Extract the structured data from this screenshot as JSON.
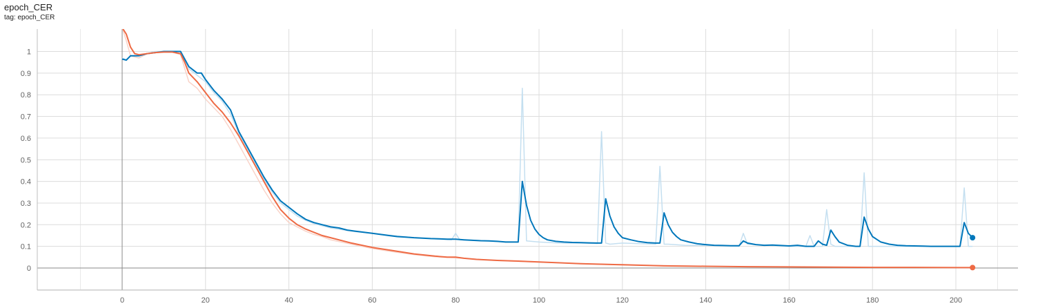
{
  "header": {
    "title": "epoch_CER",
    "tag": "tag: epoch_CER"
  },
  "chart_data": [
    {
      "type": "line",
      "title": "epoch_CER",
      "xlabel": "",
      "ylabel": "",
      "xlim": [
        -20,
        215
      ],
      "ylim": [
        -0.1,
        1.1
      ],
      "x_ticks": [
        0,
        20,
        40,
        60,
        80,
        100,
        120,
        140,
        160,
        180,
        200
      ],
      "y_ticks": [
        0,
        0.1,
        0.2,
        0.3,
        0.4,
        0.5,
        0.6,
        0.7,
        0.8,
        0.9,
        1
      ],
      "x_tick_labels": [
        "0",
        "20",
        "40",
        "60",
        "80",
        "100",
        "120",
        "140",
        "160",
        "180",
        "200"
      ],
      "y_tick_labels": [
        "0",
        "0.1",
        "0.2",
        "0.3",
        "0.4",
        "0.5",
        "0.6",
        "0.7",
        "0.8",
        "0.9",
        "1"
      ],
      "grid": true,
      "series": [
        {
          "color": "#0077bb",
          "raw_color": "#c4dff0",
          "smoothed": {
            "x": [
              0,
              1,
              2,
              4,
              6,
              8,
              10,
              12,
              14,
              16,
              18,
              19,
              20,
              22,
              24,
              26,
              27,
              28,
              30,
              32,
              34,
              36,
              38,
              40,
              42,
              44,
              46,
              48,
              50,
              52,
              54,
              56,
              58,
              60,
              62,
              64,
              66,
              68,
              70,
              72,
              74,
              76,
              78,
              80,
              82,
              84,
              86,
              88,
              90,
              92,
              94,
              95,
              96,
              97,
              98,
              99,
              100,
              101,
              102,
              104,
              106,
              108,
              110,
              112,
              114,
              115,
              116,
              117,
              118,
              119,
              120,
              122,
              124,
              126,
              128,
              129,
              130,
              131,
              132,
              133,
              134,
              136,
              138,
              140,
              142,
              144,
              146,
              148,
              149,
              150,
              152,
              154,
              156,
              158,
              160,
              162,
              164,
              166,
              167,
              168,
              169,
              170,
              171,
              172,
              174,
              176,
              177,
              178,
              179,
              180,
              182,
              184,
              186,
              188,
              190,
              192,
              194,
              196,
              198,
              200,
              201,
              202,
              203,
              204
            ],
            "y": [
              0.965,
              0.96,
              0.98,
              0.98,
              0.99,
              0.995,
              1.0,
              1.0,
              1.0,
              0.93,
              0.9,
              0.9,
              0.87,
              0.82,
              0.78,
              0.73,
              0.68,
              0.63,
              0.56,
              0.49,
              0.42,
              0.36,
              0.31,
              0.28,
              0.25,
              0.225,
              0.21,
              0.2,
              0.19,
              0.185,
              0.175,
              0.17,
              0.165,
              0.16,
              0.155,
              0.15,
              0.145,
              0.143,
              0.14,
              0.138,
              0.136,
              0.135,
              0.133,
              0.133,
              0.13,
              0.128,
              0.126,
              0.125,
              0.123,
              0.12,
              0.12,
              0.12,
              0.4,
              0.29,
              0.22,
              0.18,
              0.155,
              0.14,
              0.13,
              0.123,
              0.12,
              0.118,
              0.117,
              0.116,
              0.115,
              0.115,
              0.32,
              0.24,
              0.19,
              0.16,
              0.14,
              0.13,
              0.122,
              0.117,
              0.115,
              0.115,
              0.255,
              0.2,
              0.165,
              0.145,
              0.13,
              0.12,
              0.112,
              0.108,
              0.105,
              0.104,
              0.103,
              0.103,
              0.125,
              0.115,
              0.108,
              0.105,
              0.106,
              0.104,
              0.102,
              0.105,
              0.1,
              0.1,
              0.125,
              0.11,
              0.105,
              0.175,
              0.145,
              0.12,
              0.105,
              0.1,
              0.1,
              0.235,
              0.18,
              0.145,
              0.12,
              0.11,
              0.105,
              0.103,
              0.102,
              0.101,
              0.1,
              0.1,
              0.1,
              0.1,
              0.1,
              0.21,
              0.16,
              0.14
            ]
          },
          "raw": {
            "x": [
              0,
              1,
              2,
              4,
              6,
              8,
              10,
              12,
              14,
              16,
              18,
              20,
              22,
              24,
              26,
              28,
              30,
              32,
              34,
              36,
              38,
              40,
              42,
              44,
              46,
              48,
              50,
              55,
              60,
              65,
              70,
              75,
              79,
              80,
              81,
              85,
              90,
              95,
              96,
              97,
              100,
              105,
              110,
              114,
              115,
              116,
              117,
              120,
              125,
              128,
              129,
              130,
              131,
              135,
              140,
              145,
              148,
              149,
              150,
              155,
              160,
              164,
              165,
              166,
              168,
              169,
              170,
              171,
              175,
              177,
              178,
              179,
              180,
              185,
              190,
              195,
              200,
              201,
              202,
              203,
              204
            ],
            "y": [
              0.97,
              0.96,
              0.98,
              0.97,
              0.99,
              1.0,
              1.0,
              1.0,
              1.0,
              0.92,
              0.89,
              0.86,
              0.81,
              0.77,
              0.71,
              0.62,
              0.55,
              0.48,
              0.41,
              0.35,
              0.3,
              0.27,
              0.24,
              0.22,
              0.205,
              0.195,
              0.185,
              0.17,
              0.16,
              0.15,
              0.14,
              0.135,
              0.13,
              0.16,
              0.13,
              0.128,
              0.122,
              0.12,
              0.83,
              0.125,
              0.12,
              0.115,
              0.115,
              0.113,
              0.63,
              0.115,
              0.11,
              0.115,
              0.112,
              0.11,
              0.47,
              0.11,
              0.11,
              0.105,
              0.104,
              0.102,
              0.1,
              0.16,
              0.11,
              0.105,
              0.1,
              0.1,
              0.15,
              0.1,
              0.1,
              0.27,
              0.11,
              0.1,
              0.1,
              0.1,
              0.44,
              0.1,
              0.1,
              0.1,
              0.1,
              0.1,
              0.1,
              0.1,
              0.37,
              0.1,
              0.1
            ]
          }
        },
        {
          "color": "#ee6a44",
          "raw_color": "#f9d3c8",
          "smoothed": {
            "x": [
              0,
              1,
              2,
              3,
              4,
              6,
              8,
              10,
              12,
              14,
              15,
              16,
              18,
              20,
              22,
              24,
              26,
              28,
              30,
              32,
              34,
              36,
              38,
              40,
              42,
              44,
              46,
              48,
              50,
              55,
              60,
              65,
              70,
              75,
              78,
              80,
              82,
              85,
              90,
              95,
              100,
              110,
              120,
              130,
              140,
              150,
              160,
              170,
              180,
              190,
              200,
              204
            ],
            "y": [
              1.11,
              1.08,
              1.02,
              0.99,
              0.985,
              0.99,
              0.995,
              0.997,
              0.997,
              0.99,
              0.95,
              0.9,
              0.86,
              0.81,
              0.76,
              0.72,
              0.67,
              0.61,
              0.54,
              0.47,
              0.4,
              0.33,
              0.27,
              0.23,
              0.2,
              0.18,
              0.165,
              0.15,
              0.14,
              0.115,
              0.095,
              0.08,
              0.065,
              0.055,
              0.05,
              0.05,
              0.045,
              0.04,
              0.035,
              0.032,
              0.028,
              0.02,
              0.015,
              0.01,
              0.008,
              0.006,
              0.005,
              0.004,
              0.003,
              0.003,
              0.002,
              0.002
            ]
          },
          "raw": {
            "x": [
              0,
              1,
              2,
              4,
              6,
              8,
              10,
              12,
              14,
              16,
              18,
              20,
              22,
              24,
              26,
              28,
              30,
              32,
              34,
              36,
              38,
              40,
              42,
              44,
              46,
              48,
              50,
              55,
              60,
              65,
              70,
              75,
              80,
              90,
              100,
              120,
              140,
              160,
              180,
              200,
              204
            ],
            "y": [
              1.11,
              1.05,
              0.98,
              0.97,
              0.99,
              0.995,
              0.997,
              0.997,
              0.985,
              0.86,
              0.83,
              0.78,
              0.74,
              0.7,
              0.64,
              0.57,
              0.5,
              0.43,
              0.36,
              0.3,
              0.25,
              0.21,
              0.19,
              0.17,
              0.155,
              0.145,
              0.13,
              0.11,
              0.09,
              0.075,
              0.062,
              0.052,
              0.047,
              0.034,
              0.027,
              0.014,
              0.008,
              0.005,
              0.003,
              0.002,
              0.002
            ]
          }
        }
      ]
    }
  ]
}
